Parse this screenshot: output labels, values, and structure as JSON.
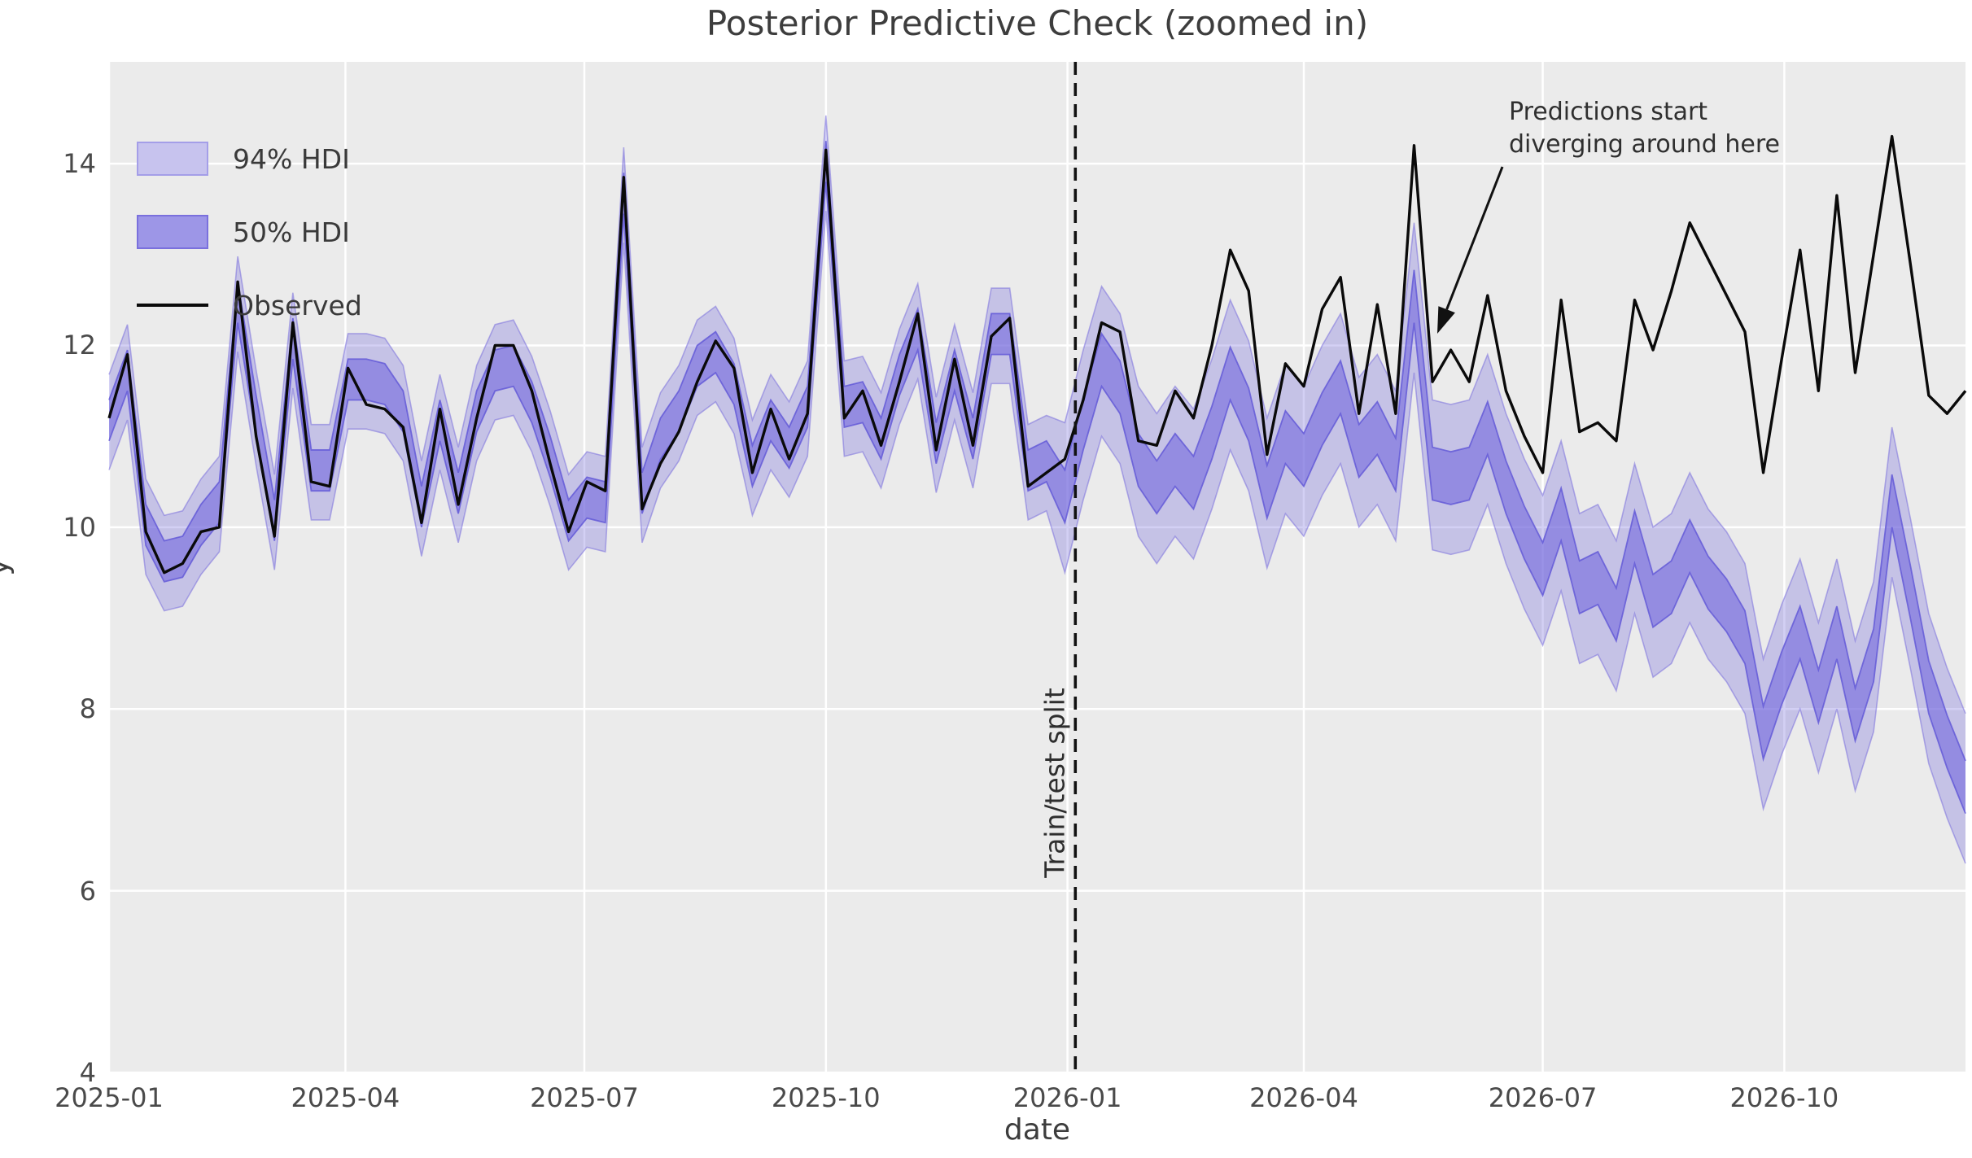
{
  "title": "Posterior Predictive Check (zoomed in)",
  "xlabel": "date",
  "ylabel": "y",
  "legend": {
    "items": [
      {
        "label": "94% HDI",
        "kind": "band-light"
      },
      {
        "label": "50% HDI",
        "kind": "band-dark"
      },
      {
        "label": "Observed",
        "kind": "line"
      }
    ]
  },
  "split_label": "Train/test split",
  "annotation": {
    "line1": "Predictions start",
    "line2": "diverging around here",
    "arrow_from": [
      1846,
      205
    ],
    "arrow_to": [
      1766,
      410
    ]
  },
  "colors": {
    "axes_bg": "#ebebeb",
    "grid": "#ffffff",
    "band_base": "#7a70dd",
    "band94_fill": "rgba(122,112,221,0.33)",
    "band94_edge": "rgba(122,112,221,0.55)",
    "band50_fill": "rgba(112,102,220,0.58)",
    "band50_edge": "rgba(100,90,215,0.85)",
    "observed": "#0a0a0a",
    "split_line": "#111111",
    "text": "#3d3d3d"
  },
  "chart_data": {
    "type": "line",
    "subtype": "timeseries-with-hdi-bands",
    "title": "Posterior Predictive Check (zoomed in)",
    "xlabel": "date",
    "ylabel": "y",
    "start_date": "2025-01-01",
    "freq_days": 7,
    "n_points": 102,
    "ylim": [
      4,
      15.12
    ],
    "grid": true,
    "legend_position": "upper-left",
    "split_date": "2026-01-04",
    "x_ticks": [
      {
        "label": "2025-01",
        "date": "2025-01-01"
      },
      {
        "label": "2025-04",
        "date": "2025-04-01"
      },
      {
        "label": "2025-07",
        "date": "2025-07-01"
      },
      {
        "label": "2025-10",
        "date": "2025-10-01"
      },
      {
        "label": "2026-01",
        "date": "2026-01-01"
      },
      {
        "label": "2026-04",
        "date": "2026-04-01"
      },
      {
        "label": "2026-07",
        "date": "2026-07-01"
      },
      {
        "label": "2026-10",
        "date": "2026-10-01"
      }
    ],
    "y_ticks": [
      {
        "label": "4",
        "value": 4
      },
      {
        "label": "6",
        "value": 6
      },
      {
        "label": "8",
        "value": 8
      },
      {
        "label": "10",
        "value": 10
      },
      {
        "label": "12",
        "value": 12
      },
      {
        "label": "14",
        "value": 14
      }
    ],
    "observed": [
      11.2,
      11.9,
      9.95,
      9.5,
      9.6,
      9.95,
      10.0,
      12.7,
      11.0,
      9.9,
      12.25,
      10.5,
      10.45,
      11.75,
      11.35,
      11.3,
      11.1,
      10.05,
      11.3,
      10.25,
      11.2,
      12.0,
      12.0,
      11.5,
      10.7,
      9.95,
      10.5,
      10.4,
      13.85,
      10.2,
      10.7,
      11.05,
      11.6,
      12.05,
      11.75,
      10.6,
      11.3,
      10.75,
      11.25,
      14.15,
      11.2,
      11.5,
      10.9,
      11.6,
      12.35,
      10.85,
      11.85,
      10.9,
      12.1,
      12.3,
      10.45,
      10.6,
      10.75,
      11.4,
      12.25,
      12.15,
      10.95,
      10.9,
      11.5,
      11.2,
      12.0,
      13.05,
      12.6,
      10.8,
      11.8,
      11.55,
      12.4,
      12.75,
      11.25,
      12.45,
      11.25,
      14.2,
      11.6,
      11.95,
      11.6,
      12.55,
      11.5,
      11.0,
      10.6,
      12.5,
      11.05,
      11.15,
      10.95,
      12.5,
      11.95,
      12.6,
      13.35,
      12.95,
      12.55,
      12.15,
      10.6,
      11.85,
      13.05,
      11.5,
      13.65,
      11.7,
      13.0,
      14.3,
      12.9,
      11.45,
      11.25,
      11.5
    ],
    "hdi50_lower": [
      10.95,
      11.5,
      9.8,
      9.4,
      9.45,
      9.8,
      10.05,
      12.25,
      11.0,
      9.85,
      11.85,
      10.4,
      10.4,
      11.4,
      11.4,
      11.35,
      11.05,
      10.0,
      10.95,
      10.15,
      11.05,
      11.5,
      11.55,
      11.15,
      10.55,
      9.85,
      10.1,
      10.05,
      13.45,
      10.15,
      10.75,
      11.05,
      11.55,
      11.7,
      11.35,
      10.45,
      10.95,
      10.65,
      11.1,
      13.8,
      11.1,
      11.15,
      10.75,
      11.45,
      11.95,
      10.7,
      11.5,
      10.75,
      11.9,
      11.9,
      10.4,
      10.5,
      10.05,
      10.85,
      11.55,
      11.25,
      10.45,
      10.15,
      10.45,
      10.2,
      10.75,
      11.4,
      10.95,
      10.1,
      10.7,
      10.45,
      10.9,
      11.25,
      10.55,
      10.8,
      10.4,
      12.25,
      10.3,
      10.25,
      10.3,
      10.8,
      10.15,
      9.65,
      9.25,
      9.85,
      9.05,
      9.15,
      8.75,
      9.6,
      8.9,
      9.05,
      9.5,
      9.1,
      8.85,
      8.5,
      7.45,
      8.05,
      8.55,
      7.85,
      8.55,
      7.65,
      8.3,
      10.0,
      9.0,
      7.95,
      7.35,
      6.85
    ],
    "hdi50_upper": [
      11.4,
      11.95,
      10.25,
      9.85,
      9.9,
      10.25,
      10.5,
      12.7,
      11.45,
      10.3,
      12.3,
      10.85,
      10.85,
      11.85,
      11.85,
      11.8,
      11.5,
      10.45,
      11.4,
      10.6,
      11.5,
      11.95,
      12.0,
      11.6,
      11.0,
      10.3,
      10.55,
      10.5,
      13.9,
      10.6,
      11.2,
      11.5,
      12.0,
      12.15,
      11.8,
      10.9,
      11.4,
      11.1,
      11.55,
      14.25,
      11.55,
      11.6,
      11.2,
      11.9,
      12.4,
      11.15,
      11.95,
      11.2,
      12.35,
      12.35,
      10.85,
      10.95,
      10.63,
      11.43,
      12.13,
      11.83,
      11.03,
      10.73,
      11.03,
      10.78,
      11.33,
      11.98,
      11.53,
      10.68,
      11.28,
      11.03,
      11.48,
      11.83,
      11.13,
      11.38,
      10.98,
      12.83,
      10.88,
      10.83,
      10.88,
      11.38,
      10.73,
      10.23,
      9.83,
      10.43,
      9.63,
      9.73,
      9.33,
      10.18,
      9.48,
      9.63,
      10.08,
      9.68,
      9.43,
      9.08,
      8.03,
      8.63,
      9.13,
      8.43,
      9.13,
      8.23,
      8.88,
      10.58,
      9.58,
      8.53,
      7.93,
      7.43
    ],
    "hdi94_lower": [
      10.63,
      11.18,
      9.48,
      9.08,
      9.13,
      9.48,
      9.73,
      11.93,
      10.68,
      9.53,
      11.53,
      10.08,
      10.08,
      11.08,
      11.08,
      11.03,
      10.73,
      9.68,
      10.63,
      9.83,
      10.73,
      11.18,
      11.23,
      10.83,
      10.23,
      9.53,
      9.78,
      9.73,
      13.13,
      9.83,
      10.43,
      10.73,
      11.23,
      11.38,
      11.03,
      10.13,
      10.63,
      10.33,
      10.78,
      13.48,
      10.78,
      10.83,
      10.43,
      11.13,
      11.63,
      10.38,
      11.18,
      10.43,
      11.58,
      11.58,
      10.08,
      10.18,
      9.5,
      10.3,
      11.0,
      10.7,
      9.9,
      9.6,
      9.9,
      9.65,
      10.2,
      10.85,
      10.4,
      9.55,
      10.15,
      9.9,
      10.35,
      10.7,
      10.0,
      10.25,
      9.85,
      11.7,
      9.75,
      9.7,
      9.75,
      10.25,
      9.6,
      9.1,
      8.7,
      9.3,
      8.5,
      8.6,
      8.2,
      9.05,
      8.35,
      8.5,
      8.95,
      8.55,
      8.3,
      7.95,
      6.9,
      7.5,
      8.0,
      7.3,
      8.0,
      7.1,
      7.75,
      9.45,
      8.45,
      7.4,
      6.8,
      6.3
    ],
    "hdi94_upper": [
      11.68,
      12.23,
      10.53,
      10.13,
      10.18,
      10.53,
      10.78,
      12.98,
      11.73,
      10.58,
      12.58,
      11.13,
      11.13,
      12.13,
      12.13,
      12.08,
      11.78,
      10.73,
      11.68,
      10.88,
      11.78,
      12.23,
      12.28,
      11.88,
      11.28,
      10.58,
      10.83,
      10.78,
      14.18,
      10.88,
      11.48,
      11.78,
      12.28,
      12.43,
      12.08,
      11.18,
      11.68,
      11.38,
      11.83,
      14.53,
      11.83,
      11.88,
      11.48,
      12.18,
      12.68,
      11.43,
      12.23,
      11.48,
      12.63,
      12.63,
      11.13,
      11.23,
      11.15,
      11.95,
      12.65,
      12.35,
      11.55,
      11.25,
      11.55,
      11.3,
      11.85,
      12.5,
      12.05,
      11.2,
      11.8,
      11.55,
      12.0,
      12.35,
      11.65,
      11.9,
      11.5,
      13.35,
      11.4,
      11.35,
      11.4,
      11.9,
      11.25,
      10.75,
      10.35,
      10.95,
      10.15,
      10.25,
      9.85,
      10.7,
      10.0,
      10.15,
      10.6,
      10.2,
      9.95,
      9.6,
      8.55,
      9.15,
      9.65,
      8.95,
      9.65,
      8.75,
      9.4,
      11.1,
      10.1,
      9.05,
      8.45,
      7.95
    ]
  }
}
